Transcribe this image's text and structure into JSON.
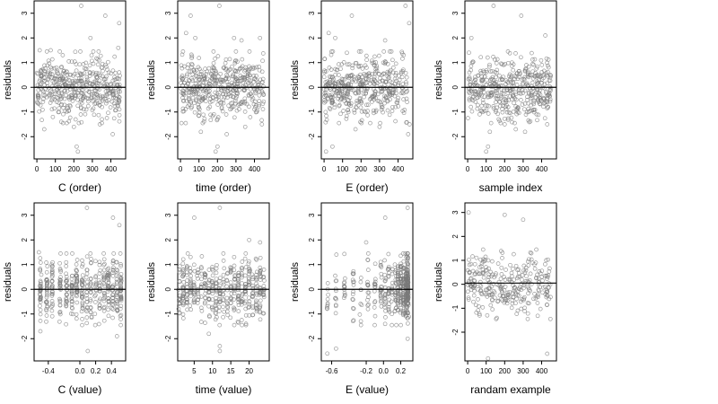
{
  "chart_data": [
    {
      "type": "scatter",
      "xlabel": "C (order)",
      "ylabel": "residuals",
      "xlim": [
        -15,
        480
      ],
      "ylim": [
        -2.9,
        3.5
      ],
      "x_ticks": [
        {
          "value": 0,
          "label": "0"
        },
        {
          "value": 100,
          "label": "100"
        },
        {
          "value": 200,
          "label": "200"
        },
        {
          "value": 300,
          "label": "300"
        },
        {
          "value": 400,
          "label": "400"
        }
      ],
      "y_ticks": [
        {
          "value": -2,
          "label": "-2"
        },
        {
          "value": -1,
          "label": "-1"
        },
        {
          "value": 0,
          "label": "0"
        },
        {
          "value": 1,
          "label": "1"
        },
        {
          "value": 2,
          "label": "2"
        },
        {
          "value": 3,
          "label": "3"
        }
      ],
      "hline": 0,
      "n_points": 450,
      "x_distribution": "uniform 0-450",
      "x_groups": [],
      "notable_points": [
        [
          15,
          1.5
        ],
        [
          40,
          -1.7
        ],
        [
          75,
          1.5
        ],
        [
          140,
          1.3
        ],
        [
          200,
          -1.6
        ],
        [
          215,
          -2.4
        ],
        [
          222,
          -2.6
        ],
        [
          240,
          3.3
        ],
        [
          290,
          2.0
        ],
        [
          340,
          -1.5
        ],
        [
          370,
          2.9
        ],
        [
          410,
          -1.9
        ],
        [
          440,
          1.6
        ],
        [
          445,
          2.6
        ]
      ]
    },
    {
      "type": "scatter",
      "xlabel": "time (order)",
      "ylabel": "residuals",
      "xlim": [
        -15,
        480
      ],
      "ylim": [
        -2.9,
        3.5
      ],
      "x_ticks": [
        {
          "value": 0,
          "label": "0"
        },
        {
          "value": 100,
          "label": "100"
        },
        {
          "value": 200,
          "label": "200"
        },
        {
          "value": 300,
          "label": "300"
        },
        {
          "value": 400,
          "label": "400"
        }
      ],
      "y_ticks": [
        {
          "value": -2,
          "label": "-2"
        },
        {
          "value": -1,
          "label": "-1"
        },
        {
          "value": 0,
          "label": "0"
        },
        {
          "value": 1,
          "label": "1"
        },
        {
          "value": 2,
          "label": "2"
        },
        {
          "value": 3,
          "label": "3"
        }
      ],
      "hline": 0,
      "n_points": 450,
      "x_distribution": "uniform 0-450",
      "x_groups": [],
      "notable_points": [
        [
          30,
          2.2
        ],
        [
          55,
          2.9
        ],
        [
          80,
          2.0
        ],
        [
          110,
          -1.8
        ],
        [
          190,
          -2.6
        ],
        [
          200,
          -2.4
        ],
        [
          210,
          3.3
        ],
        [
          250,
          -1.9
        ],
        [
          290,
          2.0
        ],
        [
          330,
          1.9
        ],
        [
          350,
          -1.6
        ],
        [
          430,
          2.0
        ],
        [
          440,
          -1.5
        ]
      ]
    },
    {
      "type": "scatter",
      "xlabel": "E (order)",
      "ylabel": "residuals",
      "xlim": [
        -15,
        480
      ],
      "ylim": [
        -2.9,
        3.5
      ],
      "x_ticks": [
        {
          "value": 0,
          "label": "0"
        },
        {
          "value": 100,
          "label": "100"
        },
        {
          "value": 200,
          "label": "200"
        },
        {
          "value": 300,
          "label": "300"
        },
        {
          "value": 400,
          "label": "400"
        }
      ],
      "y_ticks": [
        {
          "value": -2,
          "label": "-2"
        },
        {
          "value": -1,
          "label": "-1"
        },
        {
          "value": 0,
          "label": "0"
        },
        {
          "value": 1,
          "label": "1"
        },
        {
          "value": 2,
          "label": "2"
        },
        {
          "value": 3,
          "label": "3"
        }
      ],
      "hline": 0,
      "n_points": 450,
      "x_distribution": "uniform 0-450",
      "x_groups": [],
      "notable_points": [
        [
          10,
          -2.6
        ],
        [
          25,
          2.2
        ],
        [
          45,
          -2.4
        ],
        [
          60,
          2.0
        ],
        [
          150,
          2.9
        ],
        [
          170,
          -1.7
        ],
        [
          300,
          -1.6
        ],
        [
          330,
          1.9
        ],
        [
          440,
          3.3
        ],
        [
          455,
          -1.9
        ],
        [
          460,
          2.6
        ],
        [
          462,
          -1.5
        ]
      ]
    },
    {
      "type": "scatter",
      "xlabel": "sample index",
      "ylabel": "residuals",
      "xlim": [
        -15,
        480
      ],
      "ylim": [
        -2.9,
        3.5
      ],
      "x_ticks": [
        {
          "value": 0,
          "label": "0"
        },
        {
          "value": 100,
          "label": "100"
        },
        {
          "value": 200,
          "label": "200"
        },
        {
          "value": 300,
          "label": "300"
        },
        {
          "value": 400,
          "label": "400"
        }
      ],
      "y_ticks": [
        {
          "value": -2,
          "label": "-2"
        },
        {
          "value": -1,
          "label": "-1"
        },
        {
          "value": 0,
          "label": "0"
        },
        {
          "value": 1,
          "label": "1"
        },
        {
          "value": 2,
          "label": "2"
        },
        {
          "value": 3,
          "label": "3"
        }
      ],
      "hline": 0,
      "n_points": 450,
      "x_distribution": "uniform 0-450",
      "x_groups": [],
      "notable_points": [
        [
          20,
          2.0
        ],
        [
          100,
          -2.6
        ],
        [
          110,
          -2.4
        ],
        [
          120,
          -1.8
        ],
        [
          140,
          3.3
        ],
        [
          200,
          -1.5
        ],
        [
          260,
          -1.7
        ],
        [
          290,
          2.9
        ],
        [
          310,
          -1.8
        ],
        [
          420,
          2.1
        ],
        [
          430,
          -1.5
        ]
      ]
    },
    {
      "type": "scatter",
      "xlabel": "C (value)",
      "ylabel": "residuals",
      "xlim": [
        -0.58,
        0.58
      ],
      "ylim": [
        -2.9,
        3.5
      ],
      "x_ticks": [
        {
          "value": -0.4,
          "label": "-0.4"
        },
        {
          "value": 0,
          "label": "0.0"
        },
        {
          "value": 0.2,
          "label": "0.2"
        },
        {
          "value": 0.4,
          "label": "0.4"
        }
      ],
      "y_ticks": [
        {
          "value": -2,
          "label": "-2"
        },
        {
          "value": -1,
          "label": "-1"
        },
        {
          "value": 0,
          "label": "0"
        },
        {
          "value": 1,
          "label": "1"
        },
        {
          "value": 2,
          "label": "2"
        },
        {
          "value": 3,
          "label": "3"
        }
      ],
      "hline": 0,
      "n_points": 450,
      "x_distribution": "grouped",
      "x_groups": [
        -0.5,
        -0.42,
        -0.35,
        -0.25,
        -0.17,
        -0.1,
        -0.04,
        0.03,
        0.09,
        0.14,
        0.2,
        0.25,
        0.31,
        0.36,
        0.42,
        0.47,
        0.52
      ],
      "notable_points": [
        [
          -0.52,
          1.5
        ],
        [
          -0.5,
          -1.7
        ],
        [
          0.09,
          3.3
        ],
        [
          0.1,
          -2.5
        ],
        [
          0.42,
          2.9
        ],
        [
          0.47,
          -1.9
        ],
        [
          0.5,
          2.6
        ]
      ]
    },
    {
      "type": "scatter",
      "xlabel": "time (value)",
      "ylabel": "residuals",
      "xlim": [
        0.5,
        25.5
      ],
      "ylim": [
        -2.9,
        3.5
      ],
      "x_ticks": [
        {
          "value": 5,
          "label": "5"
        },
        {
          "value": 10,
          "label": "10"
        },
        {
          "value": 15,
          "label": "15"
        },
        {
          "value": 20,
          "label": "20"
        }
      ],
      "y_ticks": [
        {
          "value": -2,
          "label": "-2"
        },
        {
          "value": -1,
          "label": "-1"
        },
        {
          "value": 0,
          "label": "0"
        },
        {
          "value": 1,
          "label": "1"
        },
        {
          "value": 2,
          "label": "2"
        },
        {
          "value": 3,
          "label": "3"
        }
      ],
      "hline": 0,
      "n_points": 450,
      "x_distribution": "grouped",
      "x_groups": [
        1,
        2,
        3,
        4,
        5,
        6,
        7,
        8,
        9,
        10,
        11,
        12,
        13,
        14,
        15,
        16,
        17,
        18,
        19,
        20,
        21,
        22,
        23,
        24
      ],
      "notable_points": [
        [
          5,
          2.9
        ],
        [
          12,
          3.3
        ],
        [
          12,
          -2.5
        ],
        [
          12,
          -2.3
        ],
        [
          9,
          -1.8
        ],
        [
          20,
          2.0
        ],
        [
          23,
          1.9
        ]
      ]
    },
    {
      "type": "scatter",
      "xlabel": "E (value)",
      "ylabel": "residuals",
      "xlim": [
        -0.72,
        0.34
      ],
      "ylim": [
        -2.9,
        3.5
      ],
      "x_ticks": [
        {
          "value": -0.6,
          "label": "-0.6"
        },
        {
          "value": -0.2,
          "label": "-0.2"
        },
        {
          "value": 0,
          "label": "0.0"
        },
        {
          "value": 0.2,
          "label": "0.2"
        }
      ],
      "y_ticks": [
        {
          "value": -2,
          "label": "-2"
        },
        {
          "value": -1,
          "label": "-1"
        },
        {
          "value": 0,
          "label": "0"
        },
        {
          "value": 1,
          "label": "1"
        },
        {
          "value": 2,
          "label": "2"
        },
        {
          "value": 3,
          "label": "3"
        }
      ],
      "hline": 0,
      "n_points": 450,
      "x_distribution": "skewed toward 0.28",
      "x_groups": [
        0.28,
        0.26,
        0.23,
        0.2,
        0.17,
        0.14,
        0.1,
        0.06,
        0.02,
        -0.03,
        -0.1,
        -0.18,
        -0.26,
        -0.35,
        -0.45,
        -0.55,
        -0.65
      ],
      "notable_points": [
        [
          -0.65,
          -2.6
        ],
        [
          -0.55,
          -2.4
        ],
        [
          0.02,
          2.9
        ],
        [
          0.28,
          3.3
        ],
        [
          0.28,
          -2.0
        ],
        [
          -0.2,
          1.9
        ]
      ]
    },
    {
      "type": "scatter",
      "xlabel": "randam example",
      "ylabel": "residuals",
      "xlim": [
        -15,
        480
      ],
      "ylim": [
        -3.2,
        3.4
      ],
      "x_ticks": [
        {
          "value": 0,
          "label": "0"
        },
        {
          "value": 100,
          "label": "100"
        },
        {
          "value": 200,
          "label": "200"
        },
        {
          "value": 300,
          "label": "300"
        },
        {
          "value": 400,
          "label": "400"
        }
      ],
      "y_ticks": [
        {
          "value": -2,
          "label": "-2"
        },
        {
          "value": -1,
          "label": "-1"
        },
        {
          "value": 0,
          "label": "0"
        },
        {
          "value": 1,
          "label": "1"
        },
        {
          "value": 2,
          "label": "2"
        },
        {
          "value": 3,
          "label": "3"
        }
      ],
      "hline": 0.05,
      "n_points": 300,
      "x_distribution": "uniform 0-450",
      "x_groups": [],
      "notable_points": [
        [
          5,
          3.0
        ],
        [
          110,
          -3.1
        ],
        [
          200,
          2.9
        ],
        [
          300,
          2.7
        ],
        [
          430,
          -2.9
        ]
      ]
    }
  ]
}
